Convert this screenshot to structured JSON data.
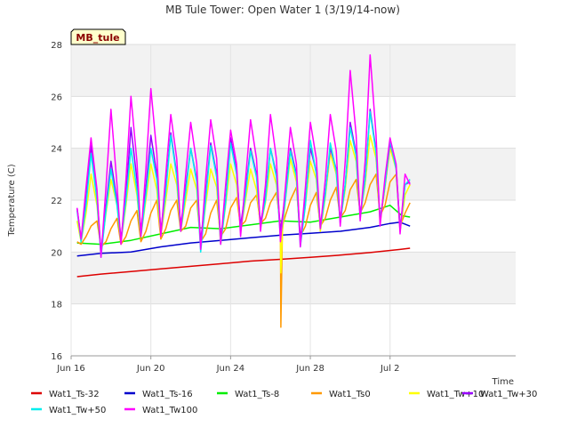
{
  "chart_data": {
    "type": "line",
    "title": "MB Tule Tower: Open Water 1 (3/19/14-now)",
    "site_label": "MB_tule",
    "xlabel": "Time",
    "ylabel": "Temperature (C)",
    "xlim": [
      0,
      22.3
    ],
    "ylim": [
      16,
      28
    ],
    "x_ticks": [
      {
        "value": 0,
        "label": "Jun 16"
      },
      {
        "value": 4,
        "label": "Jun 20"
      },
      {
        "value": 8,
        "label": "Jun 24"
      },
      {
        "value": 12,
        "label": "Jun 28"
      },
      {
        "value": 16,
        "label": "Jul 2"
      }
    ],
    "y_ticks": [
      16,
      18,
      20,
      22,
      24,
      26,
      28
    ],
    "grid": true,
    "legend_position": "bottom",
    "series": [
      {
        "name": "Wat1_Ts-32",
        "color": "#dd0000",
        "x": [
          0.3,
          1.5,
          3.0,
          4.5,
          6.0,
          7.5,
          9.0,
          10.5,
          12.0,
          13.5,
          15.0,
          16.5,
          17.0
        ],
        "y": [
          19.05,
          19.15,
          19.25,
          19.35,
          19.45,
          19.55,
          19.65,
          19.72,
          19.8,
          19.88,
          19.98,
          20.1,
          20.15
        ]
      },
      {
        "name": "Wat1_Ts-16",
        "color": "#0000cc",
        "x": [
          0.3,
          1.5,
          3.0,
          4.5,
          6.0,
          7.5,
          9.0,
          10.5,
          12.0,
          13.5,
          15.0,
          16.0,
          16.5,
          17.0
        ],
        "y": [
          19.85,
          19.95,
          20.0,
          20.2,
          20.35,
          20.45,
          20.55,
          20.65,
          20.72,
          20.8,
          20.95,
          21.1,
          21.15,
          21.0
        ]
      },
      {
        "name": "Wat1_Ts-8",
        "color": "#00ee00",
        "x": [
          0.3,
          1.5,
          3.0,
          4.5,
          6.0,
          7.5,
          9.0,
          10.5,
          12.0,
          13.5,
          15.0,
          16.0,
          16.6,
          17.0
        ],
        "y": [
          20.35,
          20.3,
          20.45,
          20.7,
          20.95,
          20.9,
          21.05,
          21.2,
          21.15,
          21.35,
          21.55,
          21.8,
          21.4,
          21.35
        ]
      },
      {
        "name": "Wat1_Ts0",
        "color": "#ff9900",
        "x": [
          0.3,
          0.5,
          0.75,
          1.0,
          1.3,
          1.5,
          1.75,
          2.0,
          2.3,
          2.5,
          2.75,
          3.0,
          3.3,
          3.5,
          3.75,
          4.0,
          4.3,
          4.5,
          4.75,
          5.0,
          5.3,
          5.5,
          5.75,
          6.0,
          6.3,
          6.5,
          6.75,
          7.0,
          7.3,
          7.5,
          7.75,
          8.0,
          8.3,
          8.5,
          8.75,
          9.0,
          9.3,
          9.5,
          9.75,
          10.0,
          10.3,
          10.5,
          10.52,
          10.6,
          10.75,
          11.0,
          11.3,
          11.5,
          11.75,
          12.0,
          12.3,
          12.5,
          12.75,
          13.0,
          13.3,
          13.5,
          13.75,
          14.0,
          14.3,
          14.5,
          14.75,
          15.0,
          15.3,
          15.5,
          15.75,
          16.0,
          16.3,
          16.5,
          16.75,
          17.0
        ],
        "y": [
          20.4,
          20.3,
          20.6,
          21.0,
          21.2,
          20.2,
          20.4,
          20.9,
          21.3,
          20.3,
          20.6,
          21.2,
          21.6,
          20.4,
          20.8,
          21.5,
          22.0,
          20.5,
          20.9,
          21.6,
          22.0,
          20.8,
          21.0,
          21.7,
          22.0,
          20.4,
          20.7,
          21.5,
          22.0,
          20.6,
          20.9,
          21.7,
          22.1,
          21.0,
          21.2,
          21.9,
          22.2,
          21.1,
          21.3,
          21.9,
          22.3,
          21.0,
          17.1,
          21.0,
          21.4,
          22.0,
          22.5,
          20.6,
          21.0,
          21.8,
          22.3,
          21.0,
          21.3,
          22.0,
          22.5,
          21.3,
          21.6,
          22.4,
          22.8,
          21.5,
          21.9,
          22.6,
          23.0,
          21.4,
          21.8,
          22.7,
          23.0,
          21.0,
          21.5,
          21.9
        ]
      },
      {
        "name": "Wat1_Tw+10",
        "color": "#ffff00",
        "x": [
          0.3,
          0.5,
          0.75,
          1.0,
          1.3,
          1.5,
          1.75,
          2.0,
          2.3,
          2.5,
          2.75,
          3.0,
          3.3,
          3.5,
          3.75,
          4.0,
          4.3,
          4.5,
          4.75,
          5.0,
          5.3,
          5.5,
          5.75,
          6.0,
          6.3,
          6.5,
          6.75,
          7.0,
          7.3,
          7.5,
          7.75,
          8.0,
          8.3,
          8.5,
          8.75,
          9.0,
          9.3,
          9.5,
          9.75,
          10.0,
          10.3,
          10.5,
          10.52,
          10.6,
          10.75,
          11.0,
          11.3,
          11.5,
          11.75,
          12.0,
          12.3,
          12.5,
          12.75,
          13.0,
          13.3,
          13.5,
          13.75,
          14.0,
          14.3,
          14.5,
          14.75,
          15.0,
          15.3,
          15.5,
          15.75,
          16.0,
          16.3,
          16.5,
          16.75,
          17.0
        ],
        "y": [
          21.2,
          20.4,
          21.5,
          23.0,
          21.8,
          20.0,
          21.5,
          22.8,
          21.8,
          20.4,
          21.8,
          23.4,
          22.2,
          20.6,
          22.0,
          23.4,
          22.4,
          20.6,
          22.0,
          23.4,
          22.6,
          20.8,
          22.0,
          23.2,
          22.4,
          20.2,
          21.8,
          23.2,
          22.5,
          20.3,
          21.8,
          23.4,
          22.6,
          20.8,
          22.0,
          23.2,
          22.4,
          21.0,
          21.9,
          23.4,
          22.6,
          20.8,
          19.2,
          20.8,
          22.0,
          23.6,
          22.7,
          20.4,
          21.8,
          23.5,
          22.8,
          20.8,
          22.1,
          23.8,
          23.0,
          21.2,
          22.4,
          24.3,
          23.5,
          21.4,
          22.6,
          24.5,
          23.6,
          21.1,
          22.5,
          24.0,
          23.2,
          20.8,
          22.2,
          22.6
        ]
      },
      {
        "name": "Wat1_Tw+30",
        "color": "#9900ff",
        "x": [
          0.3,
          0.5,
          0.75,
          1.0,
          1.3,
          1.5,
          1.75,
          2.0,
          2.3,
          2.5,
          2.75,
          3.0,
          3.3,
          3.5,
          3.75,
          4.0,
          4.3,
          4.5,
          4.75,
          5.0,
          5.3,
          5.5,
          5.75,
          6.0,
          6.3,
          6.5,
          6.75,
          7.0,
          7.3,
          7.5,
          7.75,
          8.0,
          8.3,
          8.5,
          8.75,
          9.0,
          9.3,
          9.5,
          9.75,
          10.0,
          10.3,
          10.5,
          10.75,
          11.0,
          11.3,
          11.5,
          11.75,
          12.0,
          12.3,
          12.5,
          12.75,
          13.0,
          13.3,
          13.5,
          13.75,
          14.0,
          14.3,
          14.5,
          14.75,
          15.0,
          15.3,
          15.5,
          15.75,
          16.0,
          16.3,
          16.5,
          16.75,
          17.0
        ],
        "y": [
          21.7,
          20.5,
          22.0,
          24.1,
          22.2,
          20.0,
          21.8,
          23.5,
          22.0,
          20.5,
          22.2,
          24.8,
          22.8,
          20.8,
          22.5,
          24.5,
          23.0,
          20.8,
          22.5,
          24.6,
          23.0,
          21.0,
          22.5,
          24.0,
          22.8,
          20.4,
          22.2,
          24.2,
          23.0,
          20.5,
          22.0,
          24.4,
          23.1,
          21.0,
          22.4,
          24.0,
          23.0,
          21.1,
          22.2,
          24.0,
          23.0,
          20.8,
          22.2,
          24.0,
          23.0,
          20.5,
          22.0,
          24.0,
          23.1,
          21.0,
          22.3,
          24.0,
          23.2,
          21.2,
          22.6,
          25.0,
          23.8,
          21.4,
          22.8,
          25.5,
          23.9,
          21.2,
          22.6,
          24.2,
          23.3,
          20.9,
          22.6,
          22.7
        ]
      },
      {
        "name": "Wat1_Tw+50",
        "color": "#00eeee",
        "x": [
          0.3,
          0.5,
          0.75,
          1.0,
          1.3,
          1.5,
          1.75,
          2.0,
          2.3,
          2.5,
          2.75,
          3.0,
          3.3,
          3.5,
          3.75,
          4.0,
          4.3,
          4.5,
          4.75,
          5.0,
          5.3,
          5.5,
          5.75,
          6.0,
          6.3,
          6.5,
          6.75,
          7.0,
          7.3,
          7.5,
          7.75,
          8.0,
          8.3,
          8.5,
          8.75,
          9.0,
          9.3,
          9.5,
          9.75,
          10.0,
          10.3,
          10.5,
          10.75,
          11.0,
          11.3,
          11.5,
          11.75,
          12.0,
          12.3,
          12.5,
          12.75,
          13.0,
          13.3,
          13.5,
          13.75,
          14.0,
          14.3,
          14.5,
          14.75,
          15.0,
          15.3,
          15.5,
          15.75,
          16.0,
          16.3,
          16.5,
          16.75,
          17.0
        ],
        "y": [
          21.6,
          20.4,
          21.8,
          23.8,
          22.0,
          19.8,
          21.6,
          23.2,
          21.8,
          20.4,
          22.0,
          24.0,
          22.4,
          20.6,
          22.2,
          24.0,
          22.8,
          20.7,
          22.3,
          24.5,
          22.9,
          20.8,
          22.3,
          24.0,
          22.7,
          20.0,
          22.0,
          24.1,
          22.9,
          20.3,
          21.9,
          24.2,
          23.0,
          20.8,
          22.2,
          23.9,
          22.9,
          21.0,
          22.0,
          24.0,
          22.9,
          20.5,
          22.0,
          23.9,
          22.9,
          20.2,
          21.8,
          24.3,
          23.0,
          20.9,
          22.2,
          24.2,
          23.1,
          21.1,
          22.6,
          24.8,
          23.7,
          21.3,
          22.8,
          25.4,
          23.8,
          21.2,
          22.6,
          24.3,
          23.2,
          20.8,
          22.6,
          22.8
        ]
      },
      {
        "name": "Wat1_Tw100",
        "color": "#ff00ff",
        "x": [
          0.3,
          0.5,
          0.75,
          1.0,
          1.3,
          1.5,
          1.75,
          2.0,
          2.3,
          2.5,
          2.75,
          3.0,
          3.3,
          3.5,
          3.75,
          4.0,
          4.3,
          4.5,
          4.75,
          5.0,
          5.3,
          5.5,
          5.75,
          6.0,
          6.3,
          6.5,
          6.75,
          7.0,
          7.3,
          7.5,
          7.75,
          8.0,
          8.3,
          8.5,
          8.75,
          9.0,
          9.3,
          9.5,
          9.75,
          10.0,
          10.3,
          10.5,
          10.75,
          11.0,
          11.3,
          11.5,
          11.75,
          12.0,
          12.3,
          12.5,
          12.75,
          13.0,
          13.3,
          13.5,
          13.75,
          14.0,
          14.3,
          14.5,
          14.75,
          15.0,
          15.3,
          15.5,
          15.75,
          16.0,
          16.3,
          16.5,
          16.75,
          17.0
        ],
        "y": [
          21.7,
          20.5,
          22.5,
          24.4,
          22.4,
          19.8,
          22.5,
          25.5,
          22.6,
          20.3,
          22.8,
          26.0,
          23.5,
          20.6,
          23.2,
          26.3,
          23.8,
          20.6,
          23.0,
          25.3,
          23.6,
          20.8,
          23.0,
          25.0,
          23.4,
          20.1,
          22.8,
          25.1,
          23.6,
          20.3,
          22.6,
          24.7,
          23.4,
          20.6,
          22.8,
          25.1,
          23.6,
          20.8,
          22.6,
          25.3,
          23.6,
          20.4,
          22.5,
          24.8,
          23.4,
          20.2,
          22.5,
          25.0,
          23.6,
          20.9,
          22.8,
          25.3,
          23.9,
          21.0,
          23.5,
          27.0,
          24.5,
          21.2,
          23.5,
          27.6,
          24.5,
          21.0,
          22.9,
          24.4,
          23.4,
          20.7,
          23.0,
          22.6
        ]
      }
    ]
  }
}
